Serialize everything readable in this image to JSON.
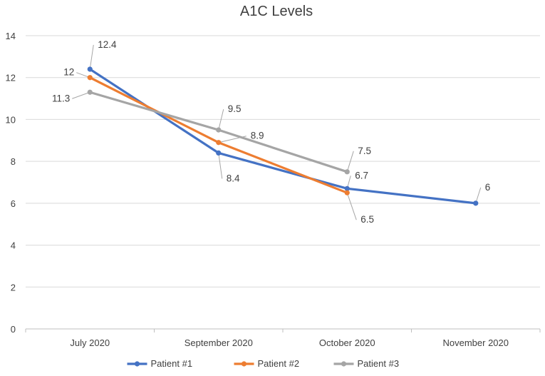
{
  "chart_data": {
    "type": "line",
    "title": "A1C Levels",
    "xlabel": "",
    "ylabel": "",
    "categories": [
      "July 2020",
      "September 2020",
      "October 2020",
      "November 2020"
    ],
    "ylim": [
      0,
      14
    ],
    "yticks": [
      0,
      2,
      4,
      6,
      8,
      10,
      12,
      14
    ],
    "grid": true,
    "legend_position": "bottom",
    "series": [
      {
        "name": "Patient #1",
        "color": "#4472c4",
        "values": [
          12.4,
          8.4,
          6.7,
          6
        ],
        "labels": [
          "12.4",
          "8.4",
          "6.7",
          "6"
        ]
      },
      {
        "name": "Patient #2",
        "color": "#ed7d31",
        "values": [
          12,
          8.9,
          6.5,
          null
        ],
        "labels": [
          "12",
          "8.9",
          "6.5",
          ""
        ]
      },
      {
        "name": "Patient #3",
        "color": "#a5a5a5",
        "values": [
          11.3,
          9.5,
          7.5,
          null
        ],
        "labels": [
          "11.3",
          "9.5",
          "7.5",
          ""
        ]
      }
    ]
  }
}
